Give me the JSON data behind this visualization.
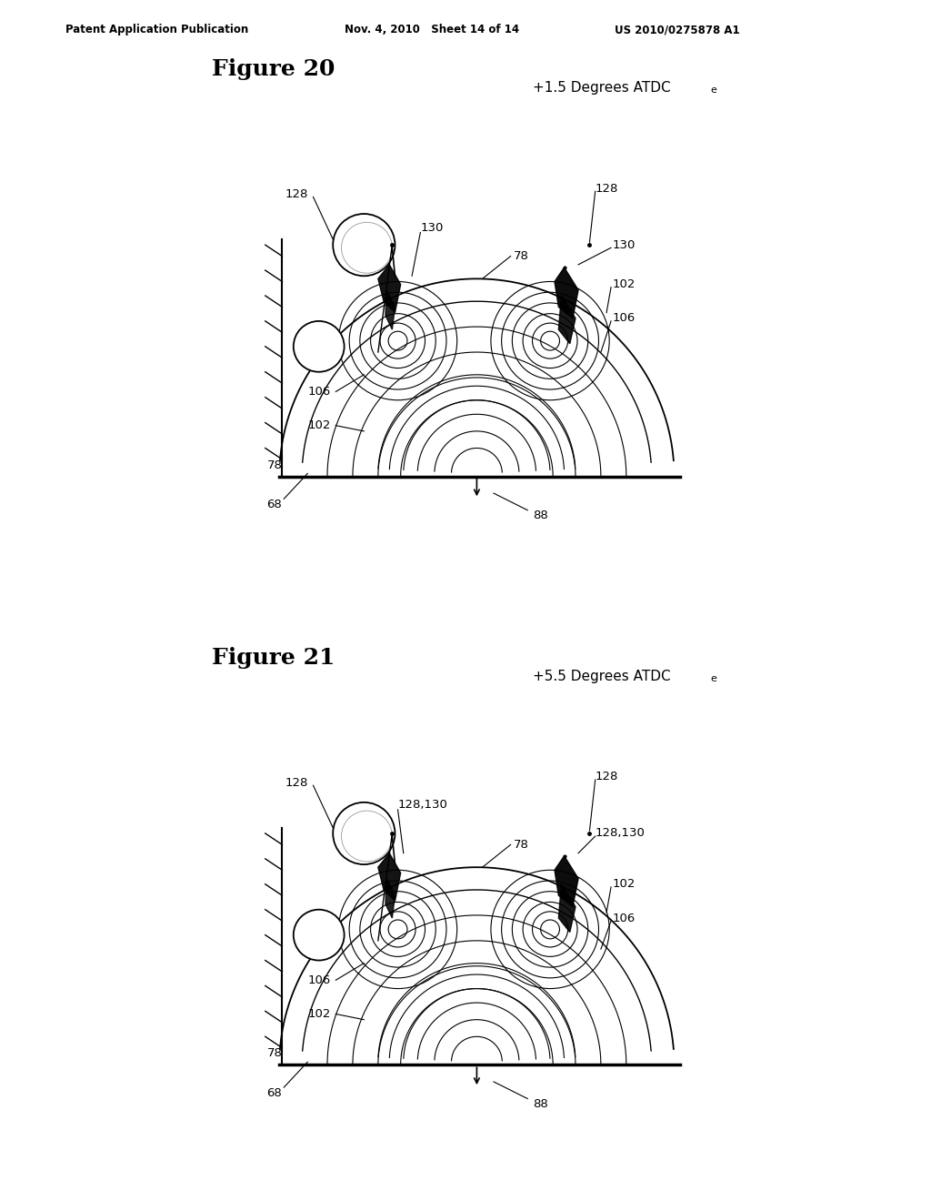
{
  "bg_color": "#ffffff",
  "header_left": "Patent Application Publication",
  "header_mid": "Nov. 4, 2010   Sheet 14 of 14",
  "header_right": "US 2010/0275878 A1",
  "fig20_label": "Figure 20",
  "fig20_subtitle": "+1.5 Degrees ATDC",
  "fig20_subtitle_sub": "e",
  "fig21_label": "Figure 21",
  "fig21_subtitle": "+5.5 Degrees ATDC",
  "fig21_subtitle_sub": "e"
}
